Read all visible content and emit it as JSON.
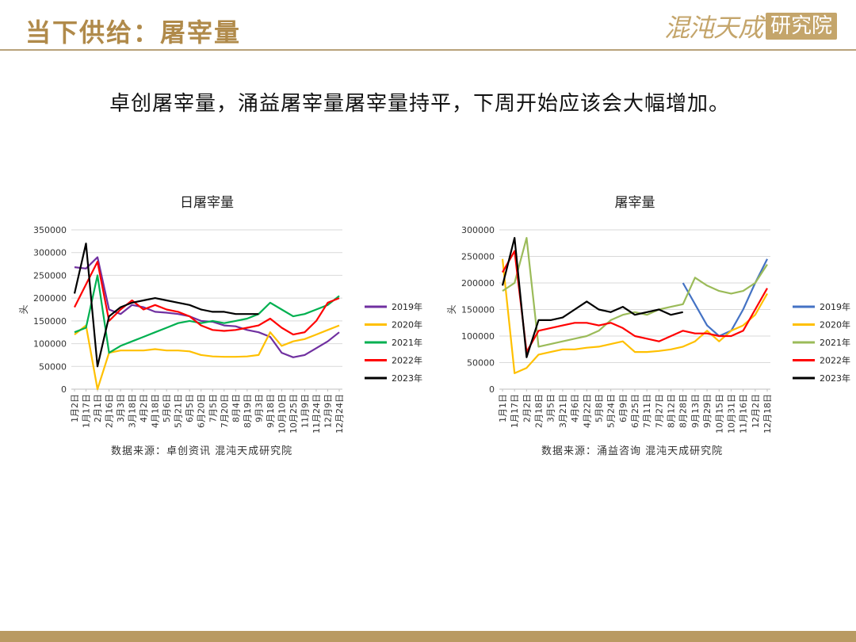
{
  "header": {
    "title": "当下供给：屠宰量"
  },
  "logo": {
    "script_text": "混沌天成",
    "box_text": "研究院"
  },
  "subtitle": "卓创屠宰量，涌益屠宰量屠宰量持平，下周开始应该会大幅增加。",
  "colors": {
    "accent": "#b08a4a",
    "series_2019_left": "#7030a0",
    "series_2019_right": "#4472c4",
    "series_2020": "#ffc000",
    "series_2021_left": "#00b050",
    "series_2021_right": "#9bbb59",
    "series_2022": "#ff0000",
    "series_2023": "#000000"
  },
  "chart_data": [
    {
      "type": "line",
      "title": "日屠宰量",
      "ylabel": "头",
      "ylim": [
        0,
        350000
      ],
      "yticks": [
        "0",
        "50000",
        "100000",
        "150000",
        "200000",
        "250000",
        "300000",
        "350000"
      ],
      "categories": [
        "1月2日",
        "1月17日",
        "2月1日",
        "2月16日",
        "3月3日",
        "3月18日",
        "4月2日",
        "4月18日",
        "5月6日",
        "5月21日",
        "6月5日",
        "6月20日",
        "7月5日",
        "7月20日",
        "8月4日",
        "8月19日",
        "9月3日",
        "9月18日",
        "10月10日",
        "10月25日",
        "11月9日",
        "11月24日",
        "12月9日",
        "12月24日"
      ],
      "legend": [
        "2019年",
        "2020年",
        "2021年",
        "2022年",
        "2023年"
      ],
      "source": "数据来源：卓创资讯 混沌天成研究院",
      "series": [
        {
          "name": "2019年",
          "color": "#7030a0",
          "values": [
            268000,
            265000,
            290000,
            175000,
            165000,
            185000,
            180000,
            170000,
            168000,
            165000,
            160000,
            150000,
            148000,
            140000,
            138000,
            130000,
            125000,
            115000,
            80000,
            70000,
            75000,
            90000,
            105000,
            125000
          ]
        },
        {
          "name": "2020年",
          "color": "#ffc000",
          "values": [
            120000,
            140000,
            0,
            80000,
            85000,
            85000,
            85000,
            88000,
            85000,
            85000,
            83000,
            75000,
            72000,
            71000,
            71000,
            72000,
            75000,
            125000,
            95000,
            105000,
            110000,
            120000,
            130000,
            140000
          ]
        },
        {
          "name": "2021年",
          "color": "#00b050",
          "values": [
            125000,
            135000,
            250000,
            80000,
            95000,
            105000,
            115000,
            125000,
            135000,
            145000,
            150000,
            145000,
            150000,
            145000,
            150000,
            155000,
            165000,
            190000,
            175000,
            160000,
            165000,
            175000,
            185000,
            205000
          ]
        },
        {
          "name": "2022年",
          "color": "#ff0000",
          "values": [
            180000,
            230000,
            280000,
            150000,
            175000,
            195000,
            175000,
            185000,
            175000,
            170000,
            160000,
            140000,
            130000,
            128000,
            130000,
            135000,
            140000,
            155000,
            135000,
            120000,
            125000,
            150000,
            190000,
            200000
          ]
        },
        {
          "name": "2023年",
          "color": "#000000",
          "values": [
            210000,
            320000,
            50000,
            160000,
            180000,
            190000,
            195000,
            200000,
            195000,
            190000,
            185000,
            175000,
            170000,
            170000,
            165000,
            165000,
            165000,
            null,
            null,
            null,
            null,
            null,
            null,
            null
          ]
        }
      ]
    },
    {
      "type": "line",
      "title": "屠宰量",
      "ylabel": "头",
      "ylim": [
        0,
        300000
      ],
      "yticks": [
        "0",
        "50000",
        "100000",
        "150000",
        "200000",
        "250000",
        "300000"
      ],
      "categories": [
        "1月1日",
        "1月17日",
        "2月2日",
        "2月18日",
        "3月5日",
        "3月21日",
        "4月6日",
        "4月22日",
        "5月8日",
        "5月24日",
        "6月9日",
        "6月25日",
        "7月11日",
        "7月27日",
        "8月12日",
        "8月28日",
        "9月13日",
        "9月29日",
        "10月15日",
        "10月31日",
        "11月16日",
        "12月2日",
        "12月18日"
      ],
      "legend": [
        "2019年",
        "2020年",
        "2021年",
        "2022年",
        "2023年"
      ],
      "source": "数据来源：涌益咨询 混沌天成研究院",
      "series": [
        {
          "name": "2019年",
          "color": "#4472c4",
          "values": [
            null,
            null,
            null,
            null,
            null,
            null,
            null,
            null,
            null,
            null,
            null,
            null,
            null,
            null,
            null,
            200000,
            160000,
            120000,
            100000,
            110000,
            150000,
            200000,
            245000
          ]
        },
        {
          "name": "2020年",
          "color": "#ffc000",
          "values": [
            245000,
            30000,
            40000,
            65000,
            70000,
            75000,
            75000,
            78000,
            80000,
            85000,
            90000,
            70000,
            70000,
            72000,
            75000,
            80000,
            90000,
            110000,
            90000,
            110000,
            120000,
            140000,
            180000
          ]
        },
        {
          "name": "2021年",
          "color": "#9bbb59",
          "values": [
            185000,
            200000,
            285000,
            80000,
            85000,
            90000,
            95000,
            100000,
            110000,
            130000,
            140000,
            145000,
            140000,
            150000,
            155000,
            160000,
            210000,
            195000,
            185000,
            180000,
            185000,
            200000,
            235000
          ]
        },
        {
          "name": "2022年",
          "color": "#ff0000",
          "values": [
            220000,
            260000,
            70000,
            110000,
            115000,
            120000,
            125000,
            125000,
            120000,
            125000,
            115000,
            100000,
            95000,
            90000,
            100000,
            110000,
            105000,
            105000,
            100000,
            100000,
            110000,
            150000,
            190000
          ]
        },
        {
          "name": "2023年",
          "color": "#000000",
          "values": [
            195000,
            285000,
            60000,
            130000,
            130000,
            135000,
            150000,
            165000,
            150000,
            145000,
            155000,
            140000,
            145000,
            150000,
            140000,
            145000,
            null,
            null,
            null,
            null,
            null,
            null,
            null
          ]
        }
      ]
    }
  ]
}
